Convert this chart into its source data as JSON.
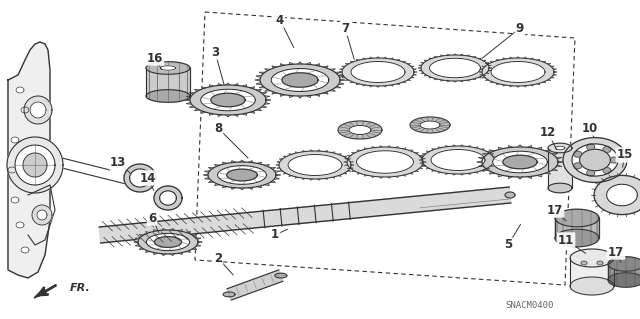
{
  "bg_color": "#ffffff",
  "fig_width": 6.4,
  "fig_height": 3.19,
  "dpi": 100,
  "dgray": "#333333",
  "mgray": "#888888",
  "lgray": "#cccccc",
  "snacm": "SNACM0400"
}
